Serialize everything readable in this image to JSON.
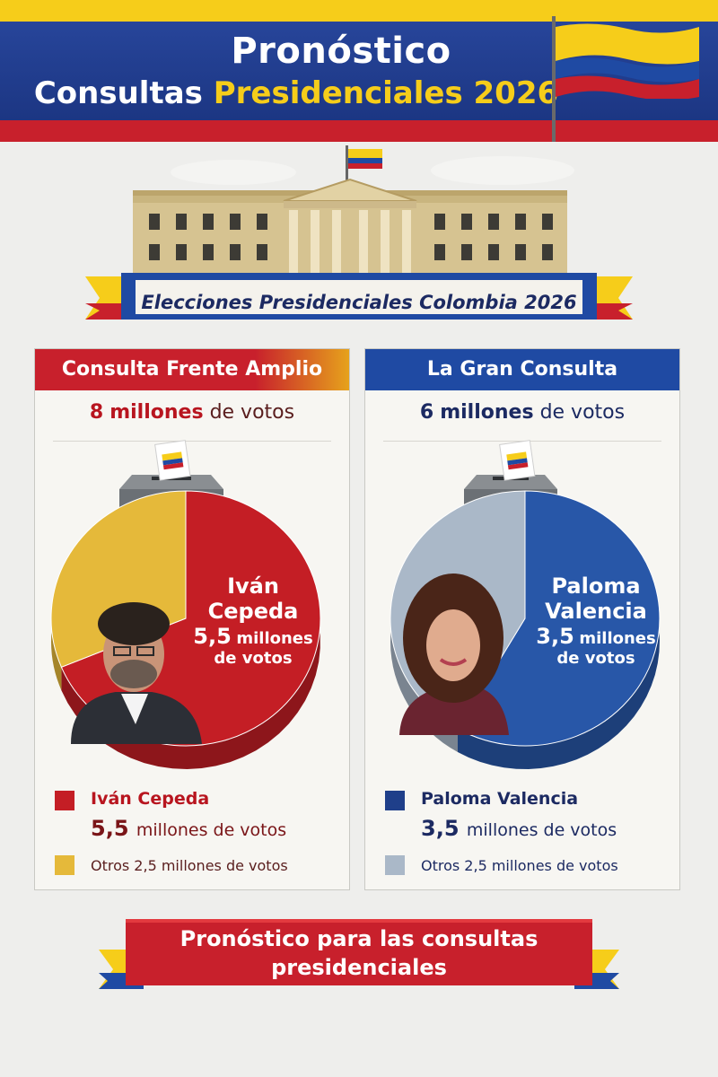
{
  "header": {
    "title_line1": "Pronóstico",
    "title_line2_a": "Consultas",
    "title_line2_b": "Presidenciales 2026"
  },
  "banner": {
    "subtitle": "Elecciones Presidenciales Colombia 2026"
  },
  "colors": {
    "flag_yellow": "#f6cd1a",
    "flag_blue": "#1f4aa3",
    "flag_red": "#c8202c",
    "left_main": "#c41e25",
    "left_other": "#e5b93a",
    "right_main": "#2857a8",
    "right_other": "#aab8c8"
  },
  "chart_data": [
    {
      "type": "pie",
      "title": "Consulta Frente Amplio",
      "total_prefix": "8",
      "total_suffix": "millones de votos",
      "total": 8,
      "unit": "millones de votos",
      "slices": [
        {
          "name": "Iván Cepeda",
          "value": 5.5,
          "value_text": "5,5",
          "color": "#c41e25"
        },
        {
          "name": "Otros",
          "value": 2.5,
          "value_text": "2,5",
          "color": "#e5b93a"
        }
      ],
      "label_name_line1": "Iván",
      "label_name_line2": "Cepeda",
      "label_value": "5,5",
      "label_unit": "millones",
      "label_unit2": "de votos",
      "legend_main_name": "Iván Cepeda",
      "legend_main_value": "5,5",
      "legend_main_unit": "millones de votos",
      "legend_other": "Otros 2,5 millones de votos"
    },
    {
      "type": "pie",
      "title": "La Gran Consulta",
      "total_prefix": "6",
      "total_suffix": "millones de votos",
      "total": 6,
      "unit": "millones de votos",
      "slices": [
        {
          "name": "Paloma Valencia",
          "value": 3.5,
          "value_text": "3,5",
          "color": "#2857a8"
        },
        {
          "name": "Otros",
          "value": 2.5,
          "value_text": "2,5",
          "color": "#aab8c8"
        }
      ],
      "label_name_line1": "Paloma",
      "label_name_line2": "Valencia",
      "label_value": "3,5",
      "label_unit": "millones",
      "label_unit2": "de votos",
      "legend_main_name": "Paloma Valencia",
      "legend_main_value": "3,5",
      "legend_main_unit": "millones de votos",
      "legend_other": "Otros 2,5 millones de votos"
    }
  ],
  "footer": {
    "line1": "Pronóstico para las consultas",
    "line2": "presidenciales"
  }
}
